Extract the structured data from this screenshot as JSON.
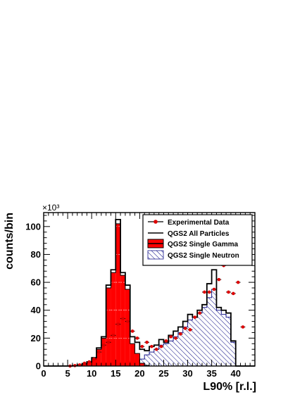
{
  "chart_data": {
    "type": "bar",
    "xlabel": "L90% [r.l.]",
    "ylabel": "counts/bin",
    "yexponent": "×10³",
    "xlim": [
      0,
      44
    ],
    "ylim": [
      0,
      110
    ],
    "xticks": [
      0,
      5,
      10,
      15,
      20,
      25,
      30,
      35,
      40
    ],
    "yticks": [
      0,
      20,
      40,
      60,
      80,
      100
    ],
    "bin_width": 1,
    "bin_start": 0,
    "legend_position": "top-right",
    "legend": [
      "Experimental Data",
      "QGS2 All Particles",
      "QGS2 Single Gamma",
      "QGS2 Single Neutron"
    ],
    "series": [
      {
        "name": "QGS2 All Particles",
        "style": "outline",
        "values": [
          0,
          0,
          0,
          0,
          0,
          0,
          0.3,
          0.8,
          1.5,
          3,
          6,
          13,
          21,
          58,
          69,
          105,
          67,
          58,
          21,
          17,
          12,
          11,
          14,
          15,
          19,
          17,
          22,
          25,
          28,
          32,
          37,
          35,
          40,
          44,
          59,
          69,
          42,
          40,
          38,
          18,
          0,
          0,
          0,
          0
        ]
      },
      {
        "name": "QGS2 Single Gamma",
        "style": "red-fill",
        "color": "#ff0000",
        "values": [
          0,
          0,
          0,
          0,
          0,
          0,
          0.3,
          0.8,
          1.5,
          3,
          6,
          12,
          20,
          56,
          67,
          102,
          65,
          55,
          16,
          9,
          2,
          0.5,
          0,
          0,
          0,
          0,
          0,
          0,
          0,
          0,
          0,
          0,
          0,
          0,
          0,
          0,
          0,
          0,
          0,
          0,
          0,
          0,
          0,
          0
        ]
      },
      {
        "name": "QGS2 Single Neutron",
        "style": "blue-hatch",
        "color": "#1a1a8c",
        "values": [
          0,
          0,
          0,
          0,
          0,
          0,
          0,
          0,
          0,
          0,
          0,
          0,
          0.5,
          1,
          1,
          1.5,
          2,
          2,
          3,
          4,
          5,
          8,
          10,
          12,
          15,
          16,
          18,
          21,
          24,
          28,
          33,
          35,
          38,
          42,
          49,
          55,
          40,
          37,
          35,
          17,
          0,
          0,
          0,
          0
        ]
      },
      {
        "name": "Experimental Data",
        "style": "points",
        "color": "#dd0000",
        "x": [
          5.5,
          6.5,
          7.5,
          8.5,
          9.5,
          10.5,
          11.5,
          12.5,
          13.5,
          14.5,
          15.5,
          16.5,
          17.5,
          18.5,
          19.5,
          20.5,
          21.5,
          22.5,
          23.5,
          24.5,
          25.5,
          26.5,
          27.5,
          28.5,
          29.5,
          30.5,
          31.5,
          32.5,
          33.5,
          34.5,
          35.5,
          36.5,
          37.5,
          38.5,
          39.5,
          40.5,
          41.5
        ],
        "y": [
          0,
          0.3,
          0.8,
          2,
          3,
          5,
          10,
          15,
          17,
          22,
          30,
          34,
          32,
          25,
          20,
          14,
          17,
          14,
          12,
          14,
          18,
          21,
          20,
          23,
          27,
          26,
          35,
          38,
          53,
          53,
          55,
          62,
          72,
          53,
          52,
          60,
          28
        ]
      }
    ]
  }
}
